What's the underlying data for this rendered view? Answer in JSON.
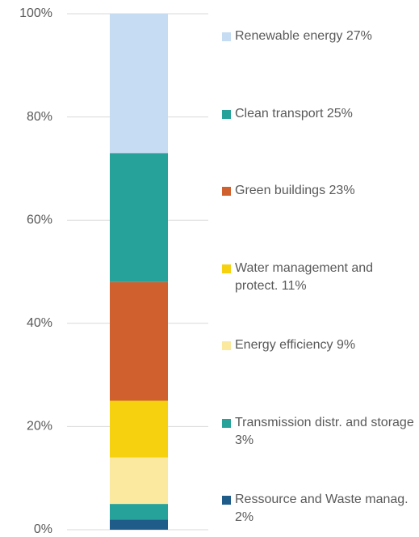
{
  "chart_data": {
    "type": "bar",
    "stacked": true,
    "categories": [
      null
    ],
    "series": [
      {
        "name": "Ressource and Waste manag. 2%",
        "color": "#1f5c8a",
        "values": [
          2
        ]
      },
      {
        "name": "Transmission distr. and storage 3%",
        "color": "#26a29a",
        "values": [
          3
        ]
      },
      {
        "name": "Energy efficiency 9%",
        "color": "#fbe9a0",
        "values": [
          9
        ]
      },
      {
        "name": "Water management and protect. 11%",
        "color": "#f5d110",
        "values": [
          11
        ]
      },
      {
        "name": "Green buildings 23%",
        "color": "#d0612f",
        "values": [
          23
        ]
      },
      {
        "name": "Clean transport 25%",
        "color": "#26a29a",
        "values": [
          25
        ]
      },
      {
        "name": "Renewable energy 27%",
        "color": "#c5dcf3",
        "values": [
          27
        ]
      }
    ],
    "ylim": [
      0,
      100
    ],
    "yticks": [
      {
        "value": 0,
        "label": "0%"
      },
      {
        "value": 20,
        "label": "20%"
      },
      {
        "value": 40,
        "label": "40%"
      },
      {
        "value": 60,
        "label": "60%"
      },
      {
        "value": 80,
        "label": "80%"
      },
      {
        "value": 100,
        "label": "100%"
      }
    ],
    "grid": true,
    "legend": "right"
  }
}
